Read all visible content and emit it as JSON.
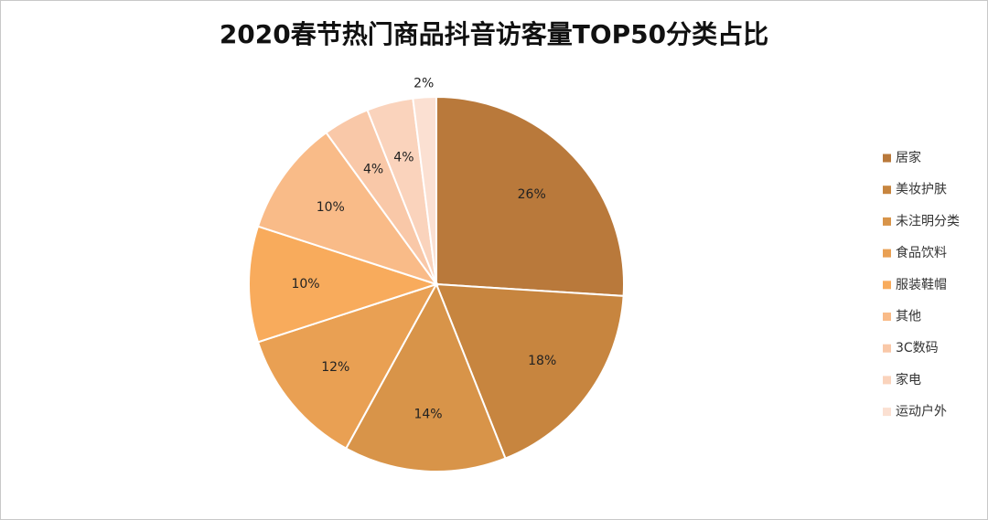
{
  "chart_data": {
    "type": "pie",
    "title": "2020春节热门商品抖音访客量TOP50分类占比",
    "categories": [
      "居家",
      "美妆护肤",
      "未注明分类",
      "食品饮料",
      "服装鞋帽",
      "其他",
      "3C数码",
      "家电",
      "运动户外"
    ],
    "values": [
      26,
      18,
      14,
      12,
      10,
      10,
      4,
      4,
      2
    ],
    "value_labels": [
      "26%",
      "18%",
      "14%",
      "12%",
      "10%",
      "10%",
      "4%",
      "4%",
      "2%"
    ],
    "colors": [
      "#b9793b",
      "#c7853f",
      "#d89449",
      "#e9a053",
      "#f8ab5c",
      "#f9bb88",
      "#f9c8a8",
      "#fad3bc",
      "#fbe0d2"
    ],
    "legend_position": "right",
    "start_angle": "12 o'clock",
    "direction": "clockwise"
  }
}
